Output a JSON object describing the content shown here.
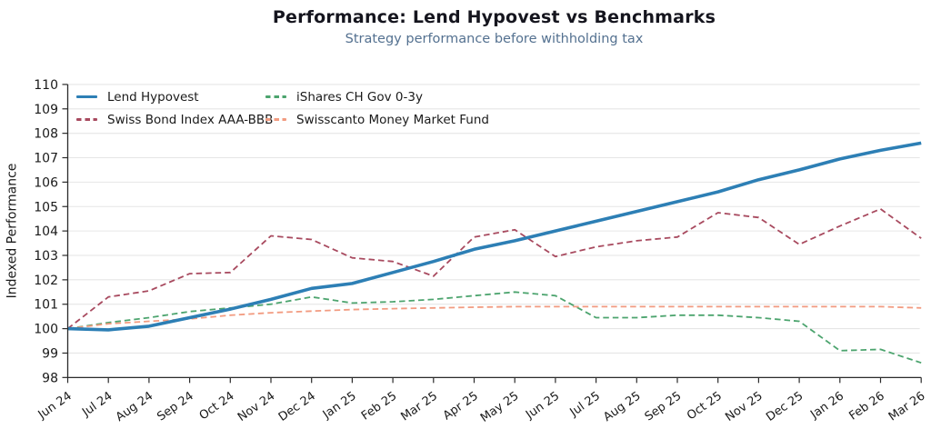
{
  "chart_data": {
    "type": "line",
    "title": "Performance: Lend Hypovest vs Benchmarks",
    "subtitle": "Strategy performance before withholding tax",
    "xlabel": "",
    "ylabel": "Indexed Performance",
    "ylim": [
      98,
      110
    ],
    "yticks": [
      98,
      99,
      100,
      101,
      102,
      103,
      104,
      105,
      106,
      107,
      108,
      109,
      110
    ],
    "grid": "horizontal",
    "legend_position": "top-left-inside",
    "x_labels": [
      "Jun 24",
      "Jul 24",
      "Aug 24",
      "Sep 24",
      "Oct 24",
      "Nov 24",
      "Dec 24",
      "Jan 25",
      "Feb 25",
      "Mar 25",
      "Apr 25",
      "May 25",
      "Jun 25",
      "Jul 25",
      "Aug 25",
      "Sep 25",
      "Oct 25",
      "Nov 25",
      "Dec 25",
      "Jan 26",
      "Feb 26",
      "Mar 26"
    ],
    "series": [
      {
        "name": "Lend Hypovest",
        "color": "#2d7fb5",
        "style": "solid",
        "width": 3.6,
        "values": [
          100.0,
          99.95,
          100.1,
          100.45,
          100.8,
          101.2,
          101.65,
          101.85,
          102.3,
          102.75,
          103.25,
          103.6,
          104.0,
          104.4,
          104.8,
          105.2,
          105.6,
          106.1,
          106.5,
          106.95,
          107.3,
          107.6
        ]
      },
      {
        "name": "Swiss Bond Index AAA-BBB",
        "color": "#a84a5f",
        "style": "dashed",
        "width": 1.8,
        "values": [
          100.0,
          101.3,
          101.55,
          102.25,
          102.3,
          103.8,
          103.65,
          102.9,
          102.75,
          102.15,
          103.75,
          104.05,
          102.95,
          103.35,
          103.6,
          103.75,
          104.75,
          104.55,
          103.45,
          104.2,
          104.9,
          103.7
        ]
      },
      {
        "name": "iShares CH Gov 0-3y",
        "color": "#4ca46e",
        "style": "dashed",
        "width": 1.8,
        "values": [
          100.0,
          100.25,
          100.45,
          100.7,
          100.85,
          101.0,
          101.3,
          101.05,
          101.1,
          101.2,
          101.35,
          101.5,
          101.35,
          100.45,
          100.45,
          100.55,
          100.55,
          100.45,
          100.3,
          99.1,
          99.15,
          98.6
        ]
      },
      {
        "name": "Swisscanto Money Market Fund",
        "color": "#f29b80",
        "style": "dashed",
        "width": 1.8,
        "values": [
          100.0,
          100.2,
          100.3,
          100.4,
          100.55,
          100.65,
          100.72,
          100.78,
          100.82,
          100.85,
          100.88,
          100.9,
          100.9,
          100.9,
          100.9,
          100.9,
          100.9,
          100.9,
          100.9,
          100.9,
          100.9,
          100.85
        ]
      }
    ],
    "axis_colors": {
      "spine": "#2b2b2b",
      "grid": "#e6e6e6",
      "tick_text": "#1a1a1a"
    }
  }
}
